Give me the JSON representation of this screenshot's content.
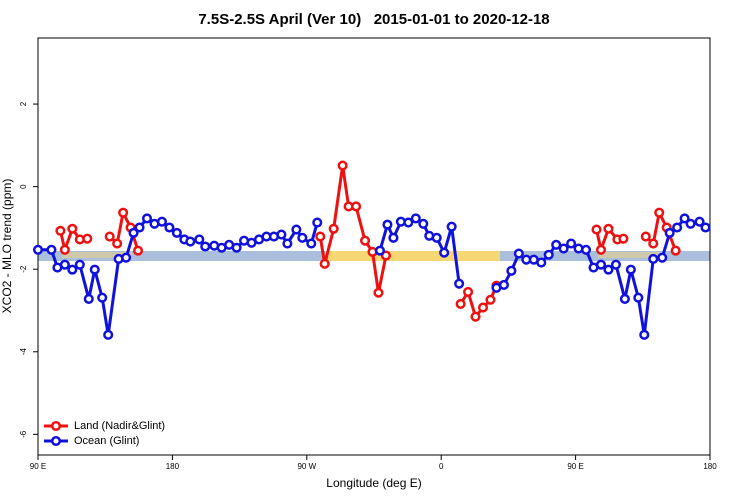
{
  "chart_data": {
    "type": "line",
    "title": "7.5S-2.5S April (Ver 10)   2015-01-01 to 2020-12-18",
    "xlabel": "Longitude (deg E)",
    "ylabel": "XCO2 - MLO trend (ppm)",
    "xlim": [
      90,
      540
    ],
    "ylim": [
      -6.5,
      3.6
    ],
    "xticks": [
      {
        "value": 90,
        "label": "90 E"
      },
      180,
      {
        "value": 270,
        "label": "90 W"
      },
      {
        "value": 360,
        "label": "0"
      },
      {
        "value": 450,
        "label": "90 E"
      },
      {
        "value": 540,
        "label": "180"
      }
    ],
    "yticks": [
      2,
      0,
      -2,
      -4,
      -6
    ],
    "legend": "bottom-left",
    "series": [
      {
        "name": "Land (Nadir&Glint)",
        "color": "#ee1111",
        "x": [
          105,
          108,
          113,
          118,
          123,
          130,
          138,
          143,
          147,
          152,
          157,
          200,
          279,
          282,
          288,
          294,
          298,
          303,
          309,
          314,
          318,
          323,
          350,
          373,
          378,
          383,
          388,
          393,
          397,
          420,
          464,
          467,
          472,
          478,
          482,
          490,
          497,
          502,
          506,
          511,
          517
        ],
        "values": [
          -1.07,
          -1.53,
          -1.02,
          -1.28,
          -1.26,
          null,
          -1.21,
          -1.38,
          -0.63,
          -0.99,
          -1.55,
          null,
          -1.21,
          -1.87,
          -1.02,
          0.51,
          -0.48,
          -0.48,
          -1.31,
          -1.58,
          -2.57,
          -1.67,
          null,
          -2.84,
          -2.55,
          -3.15,
          -2.93,
          -2.74,
          -2.4,
          null,
          -1.04,
          -1.53,
          -1.02,
          -1.28,
          -1.26,
          null,
          -1.21,
          -1.38,
          -0.63,
          -0.99,
          -1.55
        ]
      },
      {
        "name": "Ocean (Glint)",
        "color": "#1111dd",
        "x": [
          90,
          99,
          103,
          108,
          113,
          118,
          124,
          128,
          133,
          137,
          144,
          149,
          154,
          158,
          163,
          168,
          173,
          178,
          183,
          188,
          192,
          198,
          202,
          208,
          213,
          218,
          223,
          228,
          233,
          238,
          243,
          248,
          253,
          257,
          263,
          267,
          273,
          277,
          300,
          319,
          324,
          328,
          333,
          338,
          343,
          348,
          352,
          357,
          362,
          367,
          372,
          385,
          397,
          402,
          407,
          412,
          417,
          422,
          427,
          432,
          437,
          442,
          447,
          452,
          457,
          462,
          467,
          472,
          477,
          483,
          487,
          492,
          496,
          502,
          508,
          513,
          518,
          523,
          527,
          533,
          537
        ],
        "values": [
          -1.53,
          -1.53,
          -1.96,
          -1.89,
          -2.01,
          -1.89,
          -2.72,
          -2.01,
          -2.69,
          -3.59,
          -1.75,
          -1.72,
          -1.12,
          -0.99,
          -0.77,
          -0.9,
          -0.85,
          -0.99,
          -1.12,
          -1.28,
          -1.33,
          -1.28,
          -1.45,
          -1.43,
          -1.48,
          -1.41,
          -1.48,
          -1.31,
          -1.36,
          -1.28,
          -1.21,
          -1.21,
          -1.16,
          -1.38,
          -1.04,
          -1.24,
          -1.38,
          -0.87,
          null,
          -1.55,
          -0.92,
          -1.24,
          -0.85,
          -0.87,
          -0.77,
          -0.9,
          -1.19,
          -1.24,
          -1.6,
          -0.97,
          -2.35,
          null,
          -2.45,
          -2.38,
          -2.04,
          -1.62,
          -1.77,
          -1.77,
          -1.84,
          -1.65,
          -1.41,
          -1.5,
          -1.38,
          -1.5,
          -1.53,
          -1.96,
          -1.89,
          -2.01,
          -1.89,
          -2.72,
          -2.01,
          -2.69,
          -3.59,
          -1.75,
          -1.72,
          -1.12,
          -0.99,
          -0.77,
          -0.9,
          -0.85,
          -0.99
        ]
      }
    ]
  }
}
